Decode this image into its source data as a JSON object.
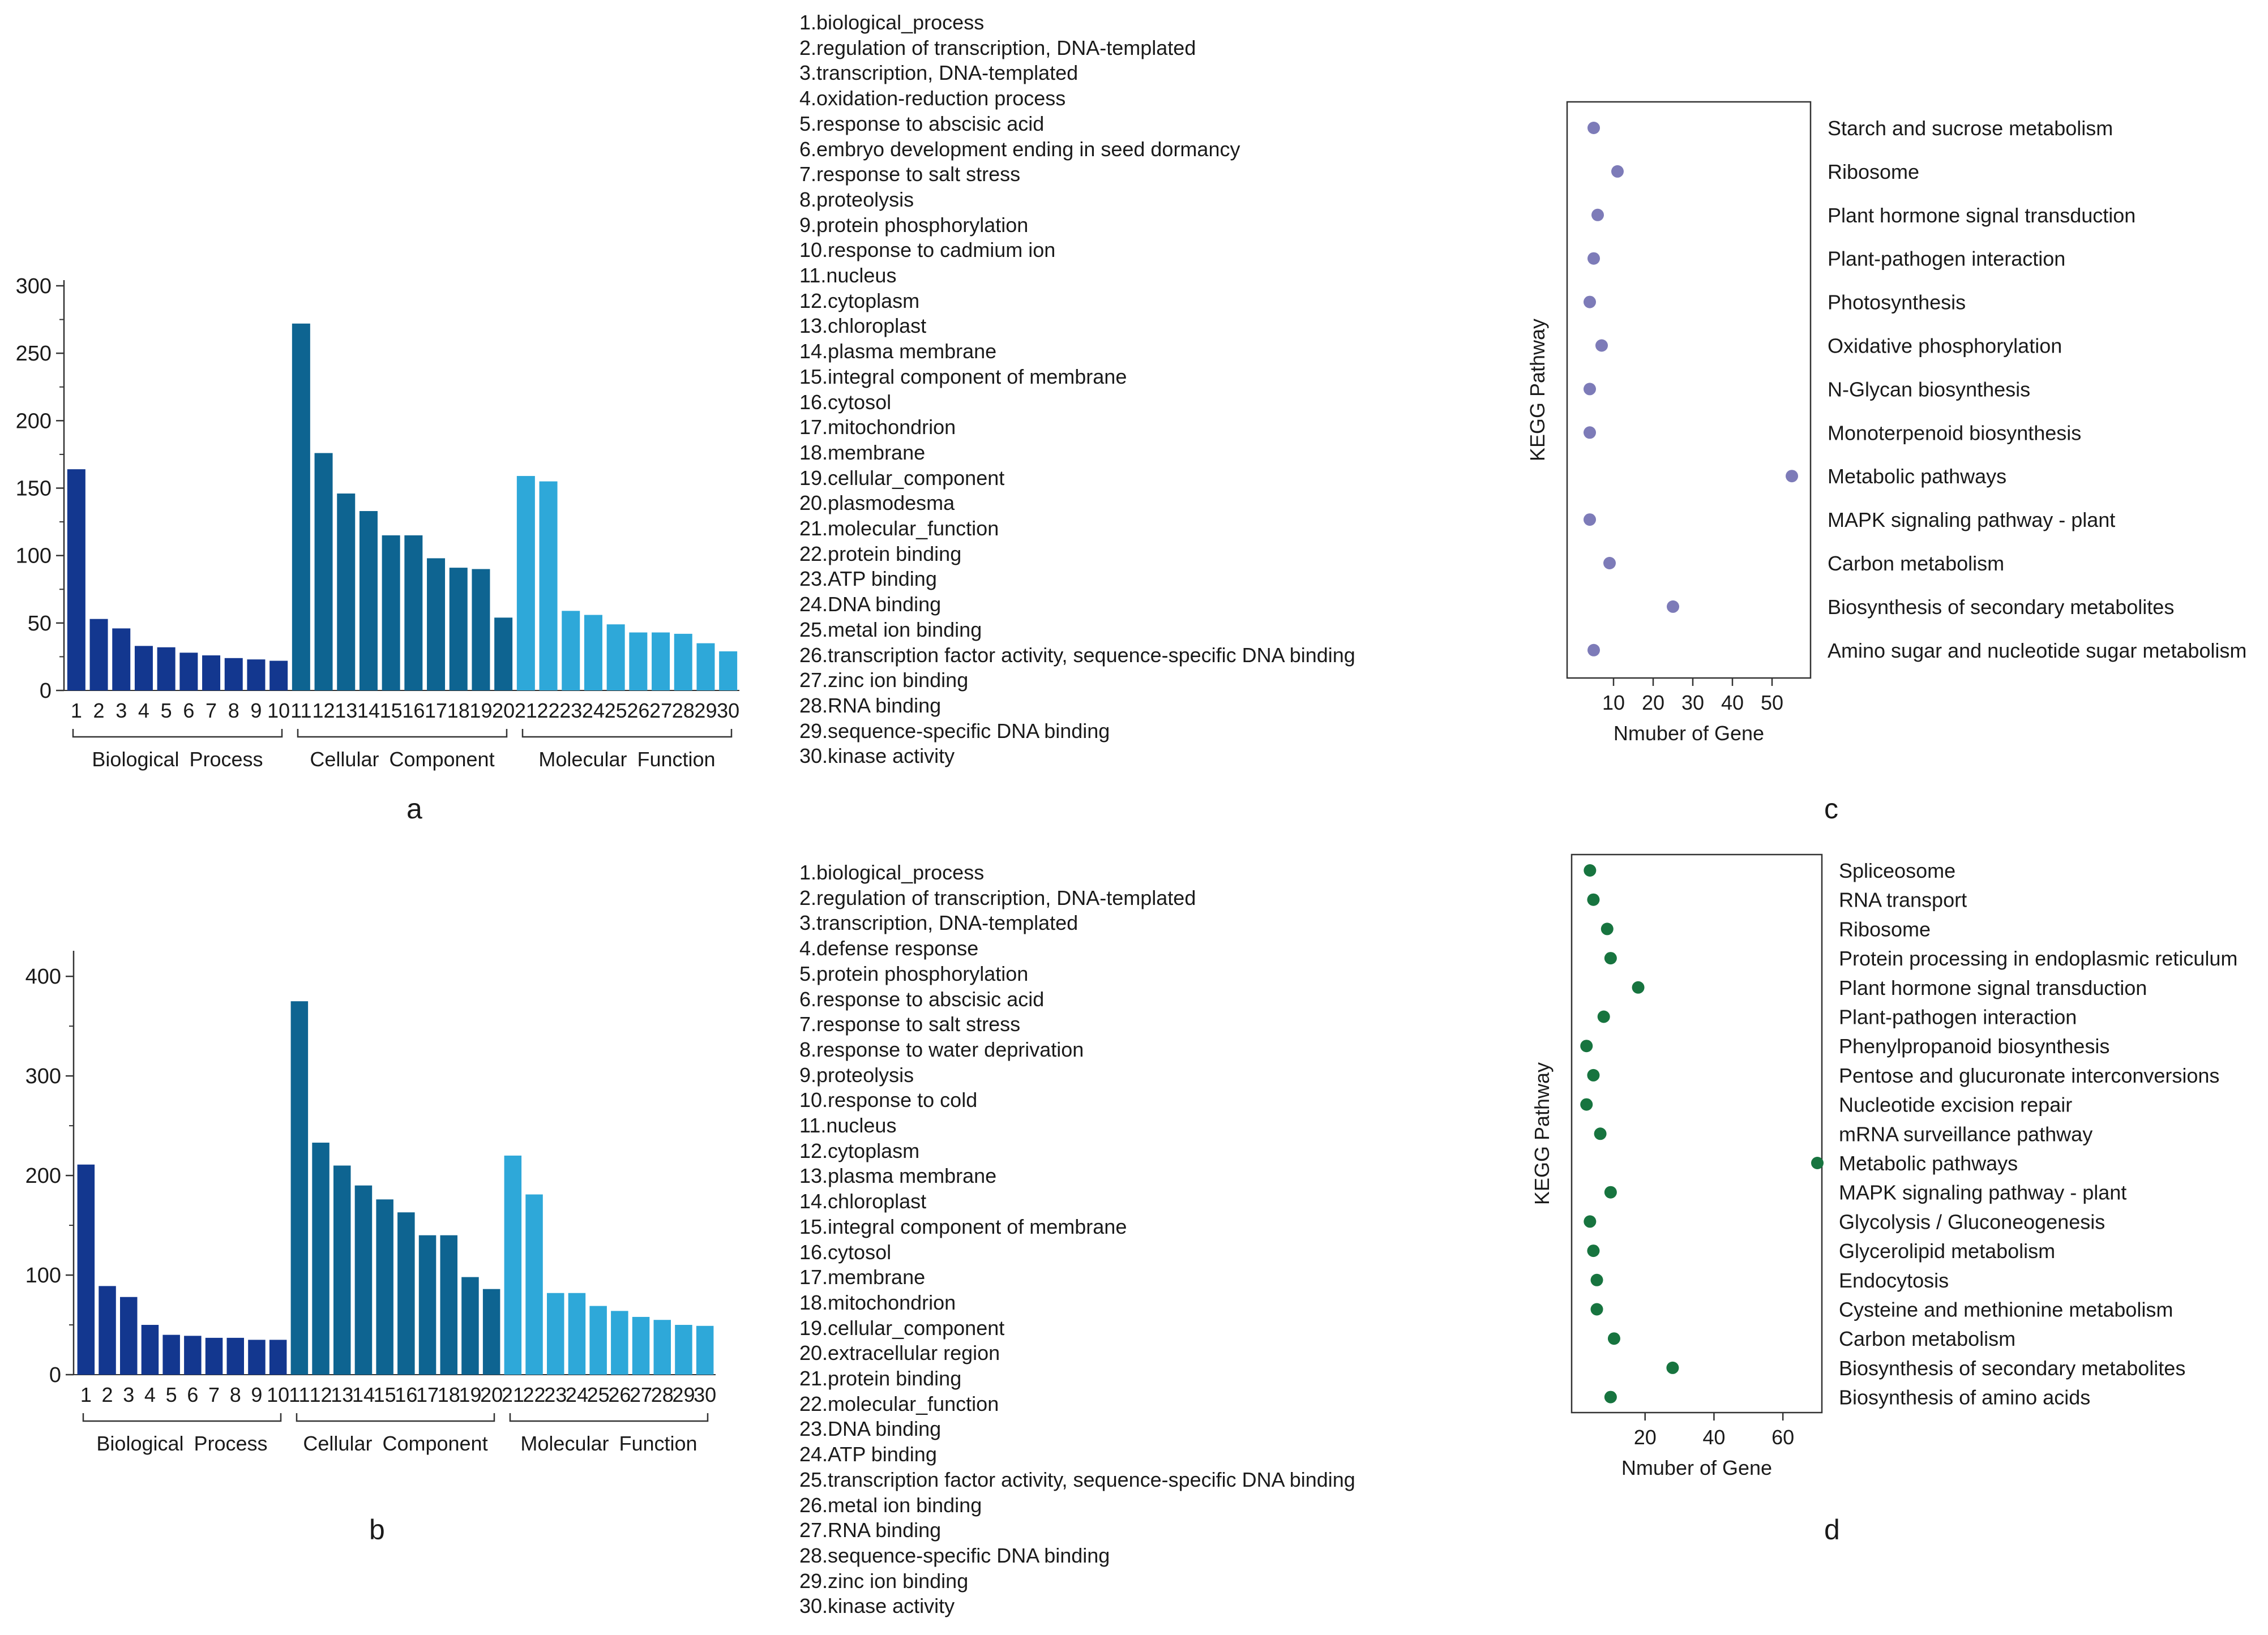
{
  "chart_data": [
    {
      "type": "bar",
      "panel_label": "a",
      "categories": [
        "1",
        "2",
        "3",
        "4",
        "5",
        "6",
        "7",
        "8",
        "9",
        "10",
        "11",
        "12",
        "13",
        "14",
        "15",
        "16",
        "17",
        "18",
        "19",
        "20",
        "21",
        "22",
        "23",
        "24",
        "25",
        "26",
        "27",
        "28",
        "29",
        "30"
      ],
      "values": [
        164,
        53,
        46,
        33,
        32,
        28,
        26,
        24,
        23,
        22,
        272,
        176,
        146,
        133,
        115,
        115,
        98,
        91,
        90,
        54,
        159,
        155,
        59,
        56,
        49,
        43,
        43,
        42,
        35,
        29
      ],
      "ylim": [
        0,
        300
      ],
      "yticks": [
        "0",
        "50",
        "100",
        "150",
        "200",
        "250",
        "300"
      ],
      "groups": [
        {
          "label": "Biological Process",
          "color": "#13378f"
        },
        {
          "label": "Cellular Component",
          "color": "#0e6491"
        },
        {
          "label": "Molecular Function",
          "color": "#2ea8d9"
        }
      ],
      "legend": [
        "1.biological_process",
        "2.regulation of transcription, DNA-templated",
        "3.transcription, DNA-templated",
        "4.oxidation-reduction process",
        "5.response to abscisic acid",
        "6.embryo development ending in seed dormancy",
        "7.response to salt stress",
        "8.proteolysis",
        "9.protein phosphorylation",
        "10.response to cadmium ion",
        "11.nucleus",
        "12.cytoplasm",
        "13.chloroplast",
        "14.plasma membrane",
        "15.integral component of membrane",
        "16.cytosol",
        "17.mitochondrion",
        "18.membrane",
        "19.cellular_component",
        "20.plasmodesma",
        "21.molecular_function",
        "22.protein binding",
        "23.ATP binding",
        "24.DNA binding",
        "25.metal ion binding",
        "26.transcription factor activity, sequence-specific DNA binding",
        "27.zinc ion binding",
        "28.RNA binding",
        "29.sequence-specific DNA binding",
        "30.kinase activity"
      ]
    },
    {
      "type": "bar",
      "panel_label": "b",
      "categories": [
        "1",
        "2",
        "3",
        "4",
        "5",
        "6",
        "7",
        "8",
        "9",
        "10",
        "11",
        "12",
        "13",
        "14",
        "15",
        "16",
        "17",
        "18",
        "19",
        "20",
        "21",
        "22",
        "23",
        "24",
        "25",
        "26",
        "27",
        "28",
        "29",
        "30"
      ],
      "values": [
        211,
        89,
        78,
        50,
        40,
        39,
        37,
        37,
        35,
        35,
        375,
        233,
        210,
        190,
        176,
        163,
        140,
        140,
        98,
        86,
        220,
        181,
        82,
        82,
        69,
        64,
        58,
        55,
        50,
        49
      ],
      "ylim": [
        0,
        420
      ],
      "yticks": [
        "0",
        "100",
        "200",
        "300",
        "400"
      ],
      "groups": [
        {
          "label": "Biological Process",
          "color": "#13378f"
        },
        {
          "label": "Cellular Component",
          "color": "#0e6491"
        },
        {
          "label": "Molecular Function",
          "color": "#2ea8d9"
        }
      ],
      "legend": [
        "1.biological_process",
        "2.regulation of transcription, DNA-templated",
        "3.transcription, DNA-templated",
        "4.defense response",
        "5.protein phosphorylation",
        "6.response to abscisic acid",
        "7.response to salt stress",
        "8.response to water deprivation",
        "9.proteolysis",
        "10.response to cold",
        "11.nucleus",
        "12.cytoplasm",
        "13.plasma membrane",
        "14.chloroplast",
        "15.integral component of membrane",
        "16.cytosol",
        "17.membrane",
        "18.mitochondrion",
        "19.cellular_component",
        "20.extracellular region",
        "21.protein binding",
        "22.molecular_function",
        "23.DNA binding",
        "24.ATP binding",
        "25.transcription factor activity, sequence-specific DNA binding",
        "26.metal ion binding",
        "27.RNA binding",
        "28.sequence-specific DNA binding",
        "29.zinc ion binding",
        "30.kinase activity"
      ]
    },
    {
      "type": "scatter",
      "panel_label": "c",
      "xlabel": "Nmuber of Gene",
      "ylabel": "KEGG Pathway",
      "xlim": [
        0,
        58
      ],
      "xticks": [
        "10",
        "20",
        "30",
        "40",
        "50"
      ],
      "color": "#7d7bb8",
      "pathways": [
        "Starch and sucrose metabolism",
        "Ribosome",
        "Plant hormone signal transduction",
        "Plant-pathogen interaction",
        "Photosynthesis",
        "Oxidative phosphorylation",
        "N-Glycan biosynthesis",
        "Monoterpenoid biosynthesis",
        "Metabolic pathways",
        "MAPK signaling pathway - plant",
        "Carbon metabolism",
        "Biosynthesis of secondary metabolites",
        "Amino sugar and nucleotide sugar metabolism"
      ],
      "values": [
        5,
        11,
        6,
        5,
        4,
        7,
        4,
        4,
        55,
        4,
        9,
        25,
        5
      ]
    },
    {
      "type": "scatter",
      "panel_label": "d",
      "xlabel": "Nmuber of Gene",
      "ylabel": "KEGG Pathway",
      "xlim": [
        0,
        70
      ],
      "xticks": [
        "20",
        "40",
        "60"
      ],
      "color": "#17743f",
      "pathways": [
        "Spliceosome",
        "RNA transport",
        "Ribosome",
        "Protein processing in endoplasmic reticulum",
        "Plant hormone signal transduction",
        "Plant-pathogen interaction",
        "Phenylpropanoid biosynthesis",
        "Pentose and glucuronate interconversions",
        "Nucleotide excision repair",
        "mRNA surveillance pathway",
        "Metabolic pathways",
        "MAPK signaling pathway - plant",
        "Glycolysis / Gluconeogenesis",
        "Glycerolipid metabolism",
        "Endocytosis",
        "Cysteine and methionine metabolism",
        "Carbon metabolism",
        "Biosynthesis of secondary metabolites",
        "Biosynthesis of amino acids"
      ],
      "values": [
        4,
        5,
        9,
        10,
        18,
        8,
        3,
        5,
        3,
        7,
        70,
        10,
        4,
        5,
        6,
        6,
        11,
        28,
        10
      ]
    }
  ]
}
